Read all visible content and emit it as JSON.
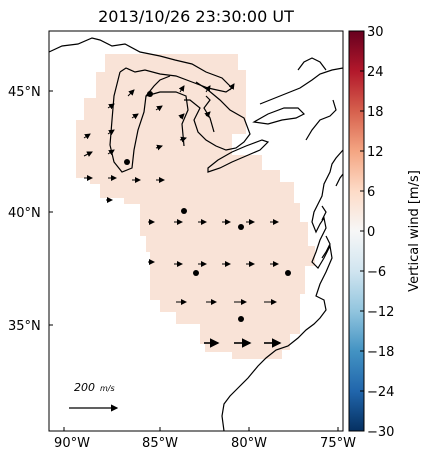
{
  "title": "2013/10/26 23:30:00 UT",
  "map": {
    "lat_ticks": [
      "45°N",
      "40°N",
      "35°N"
    ],
    "lon_ticks": [
      "90°W",
      "85°W",
      "80°W",
      "75°W"
    ],
    "scale_label": "200",
    "scale_unit": "m/s",
    "region_color": "#f9e3d7"
  },
  "colorbar": {
    "label": "Vertical wind [m/s]",
    "ticks": [
      "30",
      "24",
      "18",
      "12",
      "6",
      "0",
      "−6",
      "−12",
      "−18",
      "−24",
      "−30"
    ],
    "min": -30,
    "max": 30,
    "colors": [
      "#053061",
      "#2166ac",
      "#4393c3",
      "#92c5de",
      "#d1e5f0",
      "#f7f7f7",
      "#fddbc7",
      "#f4a582",
      "#d6604d",
      "#b2182b",
      "#67001f"
    ]
  }
}
